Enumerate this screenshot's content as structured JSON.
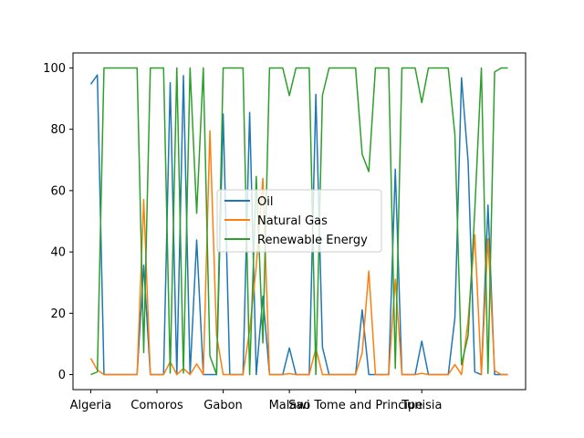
{
  "chart_data": {
    "type": "line",
    "title": "",
    "xlabel": "",
    "ylabel": "",
    "ylim": [
      -4.9,
      104.9
    ],
    "grid": false,
    "legend_position": "center",
    "x_tick_labels": [
      {
        "index": 0,
        "label": "Algeria"
      },
      {
        "index": 10,
        "label": "Comoros"
      },
      {
        "index": 20,
        "label": "Gabon"
      },
      {
        "index": 30,
        "label": "Malawi"
      },
      {
        "index": 40,
        "label": "Sao Tome and Principe"
      },
      {
        "index": 50,
        "label": "Tunisia"
      }
    ],
    "y_ticks": [
      0,
      20,
      40,
      60,
      80,
      100
    ],
    "series": [
      {
        "name": "Oil",
        "color": "#1f77b4",
        "values": [
          94.7,
          97.7,
          0,
          0,
          0,
          0,
          0,
          0,
          35.7,
          0,
          0,
          0,
          95.2,
          0,
          97.5,
          0,
          43.9,
          0,
          0,
          0,
          85.0,
          0,
          0,
          0,
          85.5,
          0,
          25.6,
          0,
          0,
          0,
          8.7,
          0,
          0,
          0,
          91.4,
          8.9,
          0,
          0,
          0,
          0,
          0,
          21.1,
          0,
          0,
          0,
          0,
          67.0,
          0,
          0,
          0,
          10.9,
          0,
          0,
          0,
          0,
          18.5,
          96.8,
          69.4,
          0.9,
          0,
          55.3,
          0,
          0,
          0
        ]
      },
      {
        "name": "Natural Gas",
        "color": "#ff7f0e",
        "values": [
          5.3,
          1.5,
          0,
          0,
          0,
          0,
          0,
          0,
          57.1,
          0,
          0,
          0,
          4.2,
          0,
          2.0,
          0,
          3.5,
          0,
          79.5,
          13.0,
          0,
          0,
          0,
          0,
          14.5,
          35.4,
          64.0,
          0,
          0,
          0,
          0.3,
          0,
          0,
          0,
          8.6,
          0,
          0,
          0,
          0,
          0,
          0,
          7.1,
          33.8,
          0,
          0,
          0,
          31.1,
          0,
          0,
          0,
          0.4,
          0,
          0,
          0,
          0,
          3.3,
          0,
          17.8,
          45.6,
          0,
          44.3,
          1.3,
          0,
          0
        ]
      },
      {
        "name": "Renewable Energy",
        "color": "#2ca02c",
        "values": [
          0,
          0.9,
          100,
          100,
          100,
          100,
          100,
          100,
          7.2,
          100,
          100,
          100,
          0.5,
          100,
          0.5,
          100,
          52.6,
          100,
          6.1,
          0,
          100,
          100,
          100,
          100,
          0,
          64.6,
          10.3,
          100,
          100,
          100,
          91.0,
          100,
          100,
          100,
          0,
          91.1,
          100,
          100,
          100,
          100,
          100,
          71.8,
          66.2,
          100,
          100,
          100,
          2.0,
          100,
          100,
          100,
          88.7,
          100,
          100,
          100,
          100,
          78.2,
          3.2,
          12.8,
          53.5,
          100,
          0.4,
          98.7,
          100,
          100
        ]
      }
    ]
  }
}
